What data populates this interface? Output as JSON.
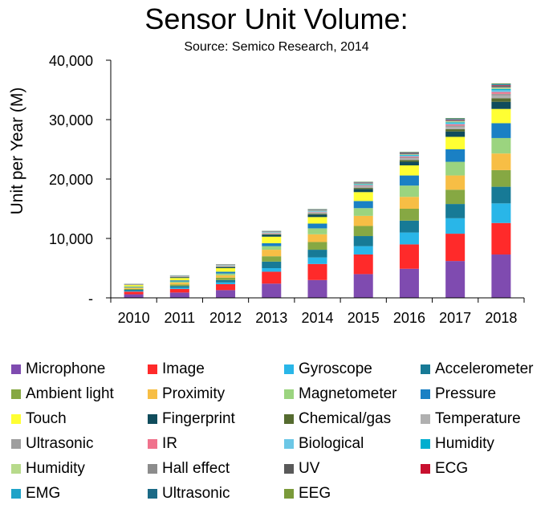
{
  "chart_data": {
    "type": "bar",
    "stacked": true,
    "title": "Sensor Unit Volume:",
    "subtitle": "Source: Semico Research, 2014",
    "xlabel": "",
    "ylabel": "Unit per Year (M)",
    "ylim": [
      0,
      40000
    ],
    "yticks": [
      0,
      10000,
      20000,
      30000,
      40000
    ],
    "ytick_labels": [
      "-",
      "10,000",
      "20,000",
      "30,000",
      "40,000"
    ],
    "grid": false,
    "legend_position": "bottom",
    "categories": [
      "2010",
      "2011",
      "2012",
      "2013",
      "2014",
      "2015",
      "2016",
      "2017",
      "2018"
    ],
    "series": [
      {
        "name": "Microphone",
        "color": "#7F4BB0",
        "values": [
          600,
          900,
          1300,
          2400,
          3000,
          4000,
          4900,
          6200,
          7300
        ]
      },
      {
        "name": "Image",
        "color": "#FF2A2A",
        "values": [
          450,
          600,
          1000,
          2000,
          2700,
          3300,
          4100,
          4600,
          5300
        ]
      },
      {
        "name": "Gyroscope",
        "color": "#29B6E8",
        "values": [
          100,
          200,
          300,
          600,
          1100,
          1400,
          2000,
          2600,
          3300
        ]
      },
      {
        "name": "Accelerometer",
        "color": "#177A96",
        "values": [
          200,
          300,
          400,
          1100,
          1300,
          1700,
          2000,
          2400,
          2800
        ]
      },
      {
        "name": "Ambient light",
        "color": "#86A843",
        "values": [
          150,
          250,
          400,
          900,
          1300,
          1700,
          2000,
          2400,
          2800
        ]
      },
      {
        "name": "Proximity",
        "color": "#F7BE45",
        "values": [
          200,
          300,
          400,
          1100,
          1300,
          1700,
          2000,
          2400,
          2800
        ]
      },
      {
        "name": "Magnetometer",
        "color": "#9BD47F",
        "values": [
          100,
          200,
          300,
          600,
          1000,
          1300,
          1900,
          2300,
          2600
        ]
      },
      {
        "name": "Pressure",
        "color": "#1A80C4",
        "values": [
          100,
          200,
          300,
          500,
          800,
          1200,
          1700,
          2100,
          2500
        ]
      },
      {
        "name": "Touch",
        "color": "#FFFF33",
        "values": [
          250,
          400,
          600,
          1100,
          1100,
          1500,
          1700,
          2100,
          2400
        ]
      },
      {
        "name": "Fingerprint",
        "color": "#104C5C",
        "values": [
          50,
          100,
          150,
          300,
          400,
          500,
          600,
          900,
          1200
        ]
      },
      {
        "name": "Chemical/gas",
        "color": "#556B2F",
        "values": [
          20,
          50,
          80,
          100,
          150,
          200,
          300,
          400,
          600
        ]
      },
      {
        "name": "Temperature",
        "color": "#B0B0B0",
        "values": [
          50,
          100,
          120,
          150,
          200,
          250,
          300,
          350,
          400
        ]
      },
      {
        "name": "Ultrasonic",
        "color": "#9E9E9E",
        "values": [
          20,
          30,
          40,
          50,
          70,
          100,
          150,
          250,
          350
        ]
      },
      {
        "name": "IR",
        "color": "#F0728C",
        "values": [
          20,
          30,
          40,
          50,
          70,
          100,
          150,
          200,
          300
        ]
      },
      {
        "name": "Biological",
        "color": "#6CC7E6",
        "values": [
          10,
          20,
          30,
          50,
          70,
          100,
          150,
          200,
          300
        ]
      },
      {
        "name": "Humidity",
        "color": "#00AECF",
        "values": [
          10,
          20,
          30,
          40,
          60,
          80,
          100,
          150,
          200
        ]
      },
      {
        "name": "Humidity",
        "color": "#B7DA8B",
        "values": [
          10,
          20,
          30,
          40,
          60,
          80,
          100,
          150,
          200
        ]
      },
      {
        "name": "Hall effect",
        "color": "#8C8C8C",
        "values": [
          10,
          20,
          30,
          40,
          60,
          80,
          100,
          150,
          200
        ]
      },
      {
        "name": "UV",
        "color": "#595959",
        "values": [
          10,
          20,
          30,
          40,
          50,
          60,
          80,
          100,
          150
        ]
      },
      {
        "name": "ECG",
        "color": "#C8102E",
        "values": [
          5,
          10,
          20,
          30,
          40,
          50,
          60,
          80,
          100
        ]
      },
      {
        "name": "EMG",
        "color": "#1FA3C8",
        "values": [
          5,
          10,
          20,
          30,
          40,
          50,
          60,
          80,
          100
        ]
      },
      {
        "name": "Ultrasonic",
        "color": "#1B6A86",
        "values": [
          5,
          10,
          20,
          30,
          40,
          50,
          60,
          80,
          100
        ]
      },
      {
        "name": "EEG",
        "color": "#7A9A3A",
        "values": [
          5,
          10,
          20,
          30,
          40,
          50,
          60,
          80,
          100
        ]
      }
    ]
  }
}
